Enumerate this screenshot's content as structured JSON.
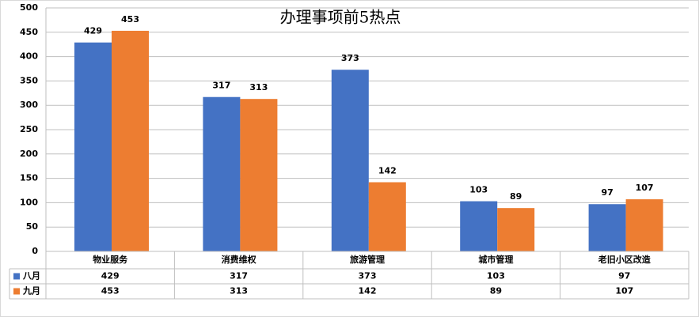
{
  "chart_data": {
    "type": "bar",
    "title": "办理事项前5热点",
    "categories": [
      "物业服务",
      "消费维权",
      "旅游管理",
      "城市管理",
      "老旧小区改造"
    ],
    "series": [
      {
        "name": "八月",
        "color": "#4472c4",
        "values": [
          429,
          317,
          373,
          103,
          97
        ]
      },
      {
        "name": "九月",
        "color": "#ed7d31",
        "values": [
          453,
          313,
          142,
          89,
          107
        ]
      }
    ],
    "ylim": [
      0,
      500
    ],
    "yticks": [
      0,
      50,
      100,
      150,
      200,
      250,
      300,
      350,
      400,
      450,
      500
    ],
    "grid": true,
    "data_labels": true,
    "data_table": true
  }
}
